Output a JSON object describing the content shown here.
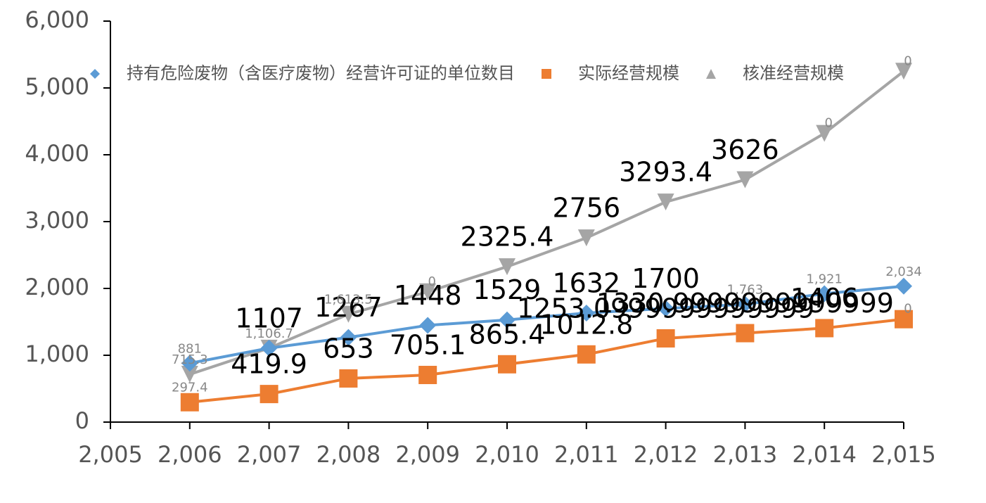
{
  "chart_data": {
    "type": "line",
    "x": [
      2006,
      2007,
      2008,
      2009,
      2010,
      2011,
      2012,
      2013,
      2014,
      2015
    ],
    "xlim": [
      2005,
      2015
    ],
    "xticks": [
      {
        "value": 2005,
        "label": "2,005"
      },
      {
        "value": 2006,
        "label": "2,006"
      },
      {
        "value": 2007,
        "label": "2,007"
      },
      {
        "value": 2008,
        "label": "2,008"
      },
      {
        "value": 2009,
        "label": "2,009"
      },
      {
        "value": 2010,
        "label": "2,010"
      },
      {
        "value": 2011,
        "label": "2,011"
      },
      {
        "value": 2012,
        "label": "2,012"
      },
      {
        "value": 2013,
        "label": "2,013"
      },
      {
        "value": 2014,
        "label": "2,014"
      },
      {
        "value": 2015,
        "label": "2,015"
      }
    ],
    "ylim": [
      0,
      6000
    ],
    "yticks": [
      0,
      {
        "value": 1000,
        "label": "1,000"
      },
      {
        "value": 2000,
        "label": "2,000"
      },
      {
        "value": 3000,
        "label": "3,000"
      },
      {
        "value": 4000,
        "label": "4,000"
      },
      {
        "value": 5000,
        "label": "5,000"
      },
      {
        "value": 6000,
        "label": "6,000"
      }
    ],
    "legend": "top",
    "series": [
      {
        "name": "持有危险废物（含医疗废物）经营许可证的单位数目",
        "color": "#5b9bd5",
        "marker": "diamond",
        "values": [
          881,
          1107,
          1267,
          1448,
          1529,
          1632,
          1700,
          1763,
          1921,
          2034
        ],
        "value_labels": [
          "881",
          "1107",
          "1267",
          "1448",
          "1529",
          "1632",
          "1700",
          "1,763",
          "1,921",
          "2,034"
        ]
      },
      {
        "name": "实际经营规模",
        "color": "#ed7d31",
        "marker": "square",
        "values": [
          297.4,
          419.9,
          653,
          705.1,
          865.4,
          1012.8,
          1253.1,
          1331,
          1406,
          1540
        ],
        "value_labels": [
          "297.4",
          "419.9",
          "653",
          "705.1",
          "865.4",
          "1012.8",
          "1253.0999999999999",
          "1330.9999999999999",
          "1406",
          null
        ]
      },
      {
        "name": "核准经营规模",
        "color": "#a5a5a5",
        "marker": "triangle",
        "values": [
          715.3,
          1106.7,
          1613.5,
          1950,
          2325.4,
          2756,
          3293.4,
          3626,
          4320,
          5250
        ],
        "value_labels": [
          "715.3",
          "1,106.7",
          "1,613.5",
          null,
          "2325.4",
          "2756",
          "3293.4",
          "3626",
          null,
          null
        ]
      }
    ],
    "annotations": [
      "0",
      "0",
      "0",
      "0"
    ]
  }
}
